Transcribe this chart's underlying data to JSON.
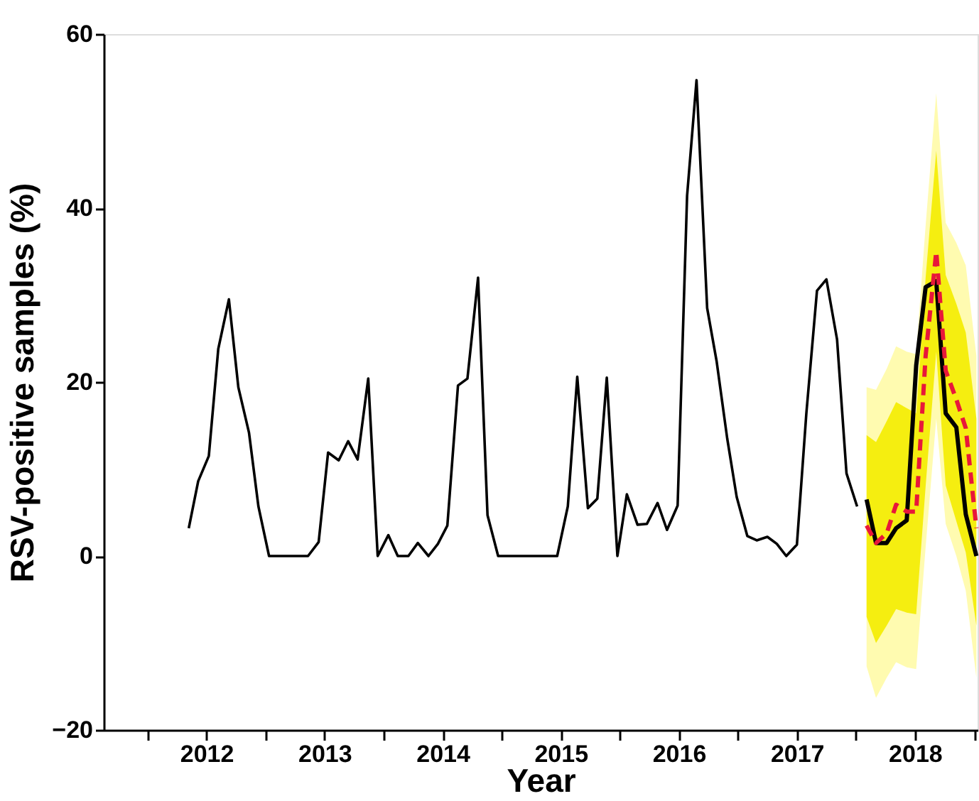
{
  "chart_data": {
    "type": "line",
    "xlabel": "Year",
    "ylabel": "RSV-positive samples (%)",
    "xlim": [
      2011.63,
      2019.03
    ],
    "ylim": [
      -20,
      60
    ],
    "xticks": [
      {
        "value": 2012,
        "label": null
      },
      {
        "value": 2012.5,
        "label": "2012"
      },
      {
        "value": 2013,
        "label": null
      },
      {
        "value": 2013.5,
        "label": "2013"
      },
      {
        "value": 2014,
        "label": null
      },
      {
        "value": 2014.5,
        "label": "2014"
      },
      {
        "value": 2015,
        "label": null
      },
      {
        "value": 2015.5,
        "label": "2015"
      },
      {
        "value": 2016,
        "label": null
      },
      {
        "value": 2016.5,
        "label": "2016"
      },
      {
        "value": 2017,
        "label": null
      },
      {
        "value": 2017.5,
        "label": "2017"
      },
      {
        "value": 2018,
        "label": null
      },
      {
        "value": 2018.5,
        "label": "2018"
      },
      {
        "value": 2019,
        "label": null
      }
    ],
    "yticks": [
      {
        "value": -20,
        "label": "−20"
      },
      0,
      20,
      40,
      60
    ],
    "grid": false,
    "marker": "none",
    "series": [
      {
        "color": "#000000",
        "line_style": "solid",
        "x": [
          2012.35,
          2012.43,
          2012.52,
          2012.6,
          2012.69,
          2012.77,
          2012.86,
          2012.94,
          2013.03,
          2013.11,
          2013.19,
          2013.28,
          2013.36,
          2013.45,
          2013.53,
          2013.62,
          2013.7,
          2013.78,
          2013.87,
          2013.95,
          2014.04,
          2014.12,
          2014.21,
          2014.29,
          2014.38,
          2014.46,
          2014.54,
          2014.63,
          2014.71,
          2014.8,
          2014.88,
          2014.97,
          2015.05,
          2015.14,
          2015.22,
          2015.3,
          2015.39,
          2015.47,
          2015.56,
          2015.64,
          2015.73,
          2015.81,
          2015.89,
          2015.98,
          2016.06,
          2016.15,
          2016.23,
          2016.32,
          2016.4,
          2016.49,
          2016.57,
          2016.65,
          2016.74,
          2016.82,
          2016.91,
          2016.99,
          2017.08,
          2017.16,
          2017.25,
          2017.33,
          2017.41,
          2017.5,
          2017.58,
          2017.67,
          2017.75,
          2017.84,
          2017.92,
          2018.01
        ],
        "values": [
          3.2,
          8.6,
          11.5,
          23.8,
          29.5,
          19.4,
          14.2,
          5.7,
          0,
          0,
          0,
          0,
          0,
          1.6,
          11.9,
          11.0,
          13.2,
          11.1,
          20.4,
          0,
          2.4,
          0,
          0,
          1.5,
          0,
          1.4,
          3.5,
          19.6,
          20.4,
          32.0,
          4.7,
          0,
          0,
          0,
          0,
          0,
          0,
          0,
          5.7,
          20.6,
          5.5,
          6.6,
          20.5,
          0,
          7.1,
          3.6,
          3.7,
          6.1,
          3.0,
          5.8,
          41.4,
          54.7,
          28.5,
          22.4,
          13.5,
          6.8,
          2.3,
          1.8,
          2.2,
          1.4,
          0,
          1.3,
          16.4,
          30.5,
          31.8,
          24.9,
          9.5,
          5.7
        ]
      },
      {
        "color": "#000000",
        "line_style": "solid",
        "x": [
          2018.09,
          2018.17,
          2018.26,
          2018.34,
          2018.43,
          2018.51,
          2018.59,
          2018.68,
          2018.76,
          2018.85,
          2018.93,
          2019.02
        ],
        "values": [
          6.5,
          1.5,
          1.5,
          3.2,
          4.1,
          21.9,
          30.9,
          31.6,
          16.4,
          14.8,
          4.8,
          0
        ],
        "lower": [
          -12.7,
          -16.3,
          -14,
          -12.2,
          -12.8,
          -13,
          1,
          15.8,
          3.7,
          0,
          -4,
          -14
        ],
        "upper": [
          19.4,
          19.1,
          21.5,
          24.1,
          23.5,
          23.2,
          38,
          53.2,
          38.3,
          36,
          33.4,
          23
        ]
      },
      {
        "color": "#e8173a",
        "line_style": "dashed",
        "x": [
          2018.09,
          2018.17,
          2018.26,
          2018.34,
          2018.43,
          2018.51,
          2018.59,
          2018.68,
          2018.76,
          2018.85,
          2018.93,
          2019.02
        ],
        "values": [
          3.5,
          1.5,
          2.6,
          5.9,
          5.1,
          5.1,
          23,
          35.0,
          21.3,
          18.0,
          14.7,
          3.2
        ],
        "lower": [
          -7,
          -10,
          -8,
          -6.1,
          -6.5,
          -6.7,
          8,
          23.5,
          8.1,
          4,
          0.4,
          -8
        ],
        "upper": [
          13.9,
          13.1,
          15.5,
          17.7,
          17,
          16.4,
          32,
          46.6,
          32.3,
          29,
          25.7,
          15.8
        ]
      }
    ]
  }
}
